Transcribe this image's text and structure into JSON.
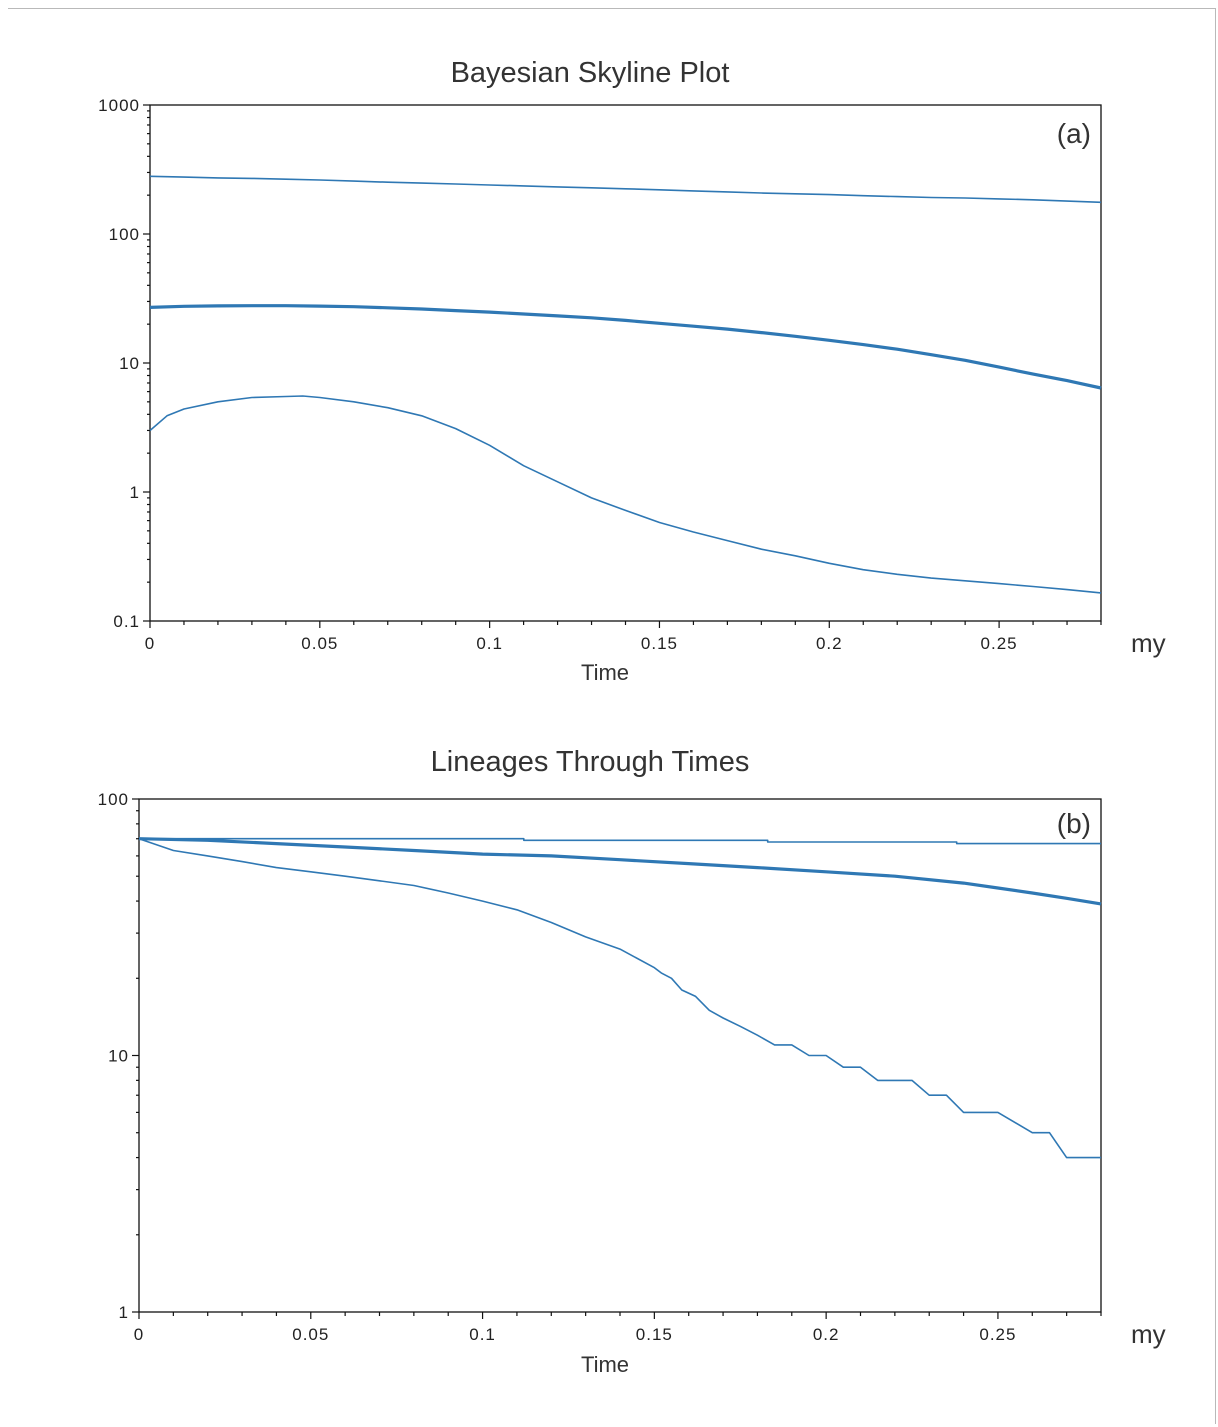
{
  "chart_data": [
    {
      "type": "line",
      "title": "Bayesian Skyline Plot",
      "panel_label": "(a)",
      "xlabel": "Time",
      "x_unit": "my",
      "ylabel": "",
      "yscale": "log",
      "xlim": [
        0,
        0.28
      ],
      "ylim": [
        0.1,
        1000
      ],
      "xticks": [
        0,
        0.05,
        0.1,
        0.15,
        0.2,
        0.25
      ],
      "xtick_labels": [
        "0",
        "0.05",
        "0.1",
        "0.15",
        "0.2",
        "0.25"
      ],
      "yticks": [
        0.1,
        1,
        10,
        100,
        1000
      ],
      "ytick_labels": [
        "0.1",
        "1",
        "10",
        "100",
        "1000"
      ],
      "grid": false,
      "line_color": "#2f78b4",
      "series": [
        {
          "role": "upper",
          "x": [
            0,
            0.01,
            0.02,
            0.03,
            0.04,
            0.05,
            0.06,
            0.07,
            0.08,
            0.09,
            0.1,
            0.11,
            0.12,
            0.13,
            0.14,
            0.15,
            0.16,
            0.17,
            0.18,
            0.19,
            0.2,
            0.21,
            0.22,
            0.23,
            0.24,
            0.25,
            0.26,
            0.27,
            0.28
          ],
          "values": [
            280,
            276,
            272,
            270,
            266,
            262,
            257,
            252,
            248,
            244,
            240,
            236,
            232,
            228,
            224,
            220,
            216,
            212,
            208,
            205,
            202,
            198,
            195,
            192,
            190,
            187,
            184,
            180,
            176
          ]
        },
        {
          "role": "median",
          "x": [
            0,
            0.01,
            0.02,
            0.03,
            0.04,
            0.05,
            0.06,
            0.07,
            0.08,
            0.09,
            0.1,
            0.11,
            0.12,
            0.13,
            0.14,
            0.15,
            0.16,
            0.17,
            0.18,
            0.19,
            0.2,
            0.21,
            0.22,
            0.23,
            0.24,
            0.25,
            0.26,
            0.27,
            0.28
          ],
          "values": [
            27,
            27.5,
            27.7,
            27.8,
            27.8,
            27.6,
            27.3,
            26.8,
            26.2,
            25.5,
            24.8,
            24,
            23.2,
            22.4,
            21.4,
            20.3,
            19.3,
            18.3,
            17.2,
            16.1,
            15,
            13.9,
            12.8,
            11.6,
            10.5,
            9.3,
            8.2,
            7.3,
            6.4
          ]
        },
        {
          "role": "lower",
          "x": [
            0,
            0.005,
            0.01,
            0.02,
            0.03,
            0.04,
            0.045,
            0.05,
            0.06,
            0.07,
            0.08,
            0.09,
            0.1,
            0.11,
            0.12,
            0.13,
            0.14,
            0.15,
            0.16,
            0.17,
            0.18,
            0.19,
            0.2,
            0.21,
            0.22,
            0.23,
            0.24,
            0.25,
            0.26,
            0.27,
            0.28
          ],
          "values": [
            3,
            3.9,
            4.4,
            5,
            5.4,
            5.5,
            5.55,
            5.4,
            5,
            4.5,
            3.9,
            3.1,
            2.3,
            1.6,
            1.2,
            0.9,
            0.72,
            0.58,
            0.49,
            0.42,
            0.36,
            0.32,
            0.28,
            0.25,
            0.23,
            0.215,
            0.205,
            0.195,
            0.185,
            0.175,
            0.165
          ]
        }
      ]
    },
    {
      "type": "line",
      "title": "Lineages Through Times",
      "panel_label": "(b)",
      "xlabel": "Time",
      "x_unit": "my",
      "ylabel": "",
      "yscale": "log",
      "xlim": [
        0,
        0.28
      ],
      "ylim": [
        1,
        100
      ],
      "xticks": [
        0,
        0.05,
        0.1,
        0.15,
        0.2,
        0.25
      ],
      "xtick_labels": [
        "0",
        "0.05",
        "0.1",
        "0.15",
        "0.2",
        "0.25"
      ],
      "yticks": [
        1,
        10,
        100
      ],
      "ytick_labels": [
        "1",
        "10",
        "100"
      ],
      "grid": false,
      "line_color": "#2f78b4",
      "series": [
        {
          "role": "upper",
          "x": [
            0,
            0.112,
            0.112,
            0.183,
            0.183,
            0.238,
            0.238,
            0.28
          ],
          "values": [
            70,
            70,
            69,
            69,
            68,
            68,
            67,
            67
          ]
        },
        {
          "role": "median",
          "x": [
            0,
            0.02,
            0.04,
            0.06,
            0.08,
            0.1,
            0.12,
            0.14,
            0.16,
            0.18,
            0.2,
            0.22,
            0.24,
            0.25,
            0.26,
            0.27,
            0.28
          ],
          "values": [
            70,
            69,
            67,
            65,
            63,
            61,
            60,
            58,
            56,
            54,
            52,
            50,
            47,
            45,
            43,
            41,
            39
          ]
        },
        {
          "role": "lower",
          "x": [
            0,
            0.01,
            0.02,
            0.03,
            0.04,
            0.05,
            0.06,
            0.07,
            0.08,
            0.09,
            0.1,
            0.11,
            0.12,
            0.13,
            0.14,
            0.15,
            0.152,
            0.155,
            0.158,
            0.162,
            0.166,
            0.17,
            0.175,
            0.18,
            0.185,
            0.19,
            0.195,
            0.2,
            0.205,
            0.21,
            0.215,
            0.22,
            0.225,
            0.23,
            0.235,
            0.24,
            0.245,
            0.25,
            0.26,
            0.265,
            0.27,
            0.28
          ],
          "values": [
            70,
            63,
            60,
            57,
            54,
            52,
            50,
            48,
            46,
            43,
            40,
            37,
            33,
            29,
            26,
            22,
            21,
            20,
            18,
            17,
            15,
            14,
            13,
            12,
            11,
            11,
            10,
            10,
            9,
            9,
            8,
            8,
            8,
            7,
            7,
            6,
            6,
            6,
            5,
            5,
            4,
            4
          ]
        }
      ]
    }
  ]
}
